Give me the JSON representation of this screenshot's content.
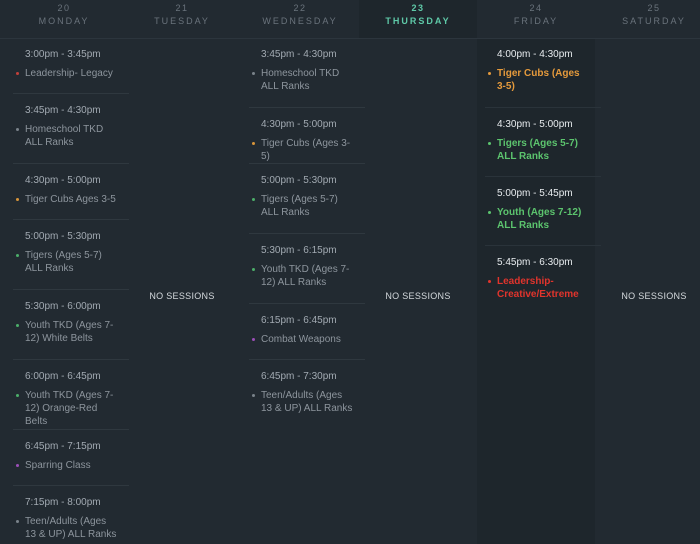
{
  "days": [
    {
      "num": "20",
      "name": "MONDAY",
      "active": false,
      "no_sessions": "",
      "sessions": [
        {
          "time": "3:00pm - 3:45pm",
          "title": "Leadership- Legacy",
          "color": "#c2403a"
        },
        {
          "time": "3:45pm - 4:30pm",
          "title": "Homeschool TKD ALL Ranks",
          "color": "#7a838b"
        },
        {
          "time": "4:30pm - 5:00pm",
          "title": "Tiger Cubs Ages 3-5",
          "color": "#d9963a"
        },
        {
          "time": "5:00pm - 5:30pm",
          "title": "Tigers (Ages 5-7) ALL Ranks",
          "color": "#4caf6a"
        },
        {
          "time": "5:30pm - 6:00pm",
          "title": "Youth TKD (Ages 7-12) White Belts",
          "color": "#4caf6a"
        },
        {
          "time": "6:00pm - 6:45pm",
          "title": "Youth TKD (Ages 7-12) Orange-Red Belts",
          "color": "#4caf6a"
        },
        {
          "time": "6:45pm - 7:15pm",
          "title": "Sparring Class",
          "color": "#9c4fb8"
        },
        {
          "time": "7:15pm - 8:00pm",
          "title": "Teen/Adults (Ages 13 & UP) ALL Ranks",
          "color": "#7a838b"
        }
      ]
    },
    {
      "num": "21",
      "name": "TUESDAY",
      "active": false,
      "no_sessions": "NO SESSIONS",
      "sessions": []
    },
    {
      "num": "22",
      "name": "WEDNESDAY",
      "active": false,
      "no_sessions": "",
      "sessions": [
        {
          "time": "3:45pm - 4:30pm",
          "title": "Homeschool TKD ALL Ranks",
          "color": "#7a838b"
        },
        {
          "time": "4:30pm - 5:00pm",
          "title": "Tiger Cubs (Ages 3-5)",
          "color": "#d9963a"
        },
        {
          "time": "5:00pm - 5:30pm",
          "title": "Tigers (Ages 5-7) ALL Ranks",
          "color": "#4caf6a"
        },
        {
          "time": "5:30pm - 6:15pm",
          "title": "Youth TKD (Ages 7-12) ALL Ranks",
          "color": "#4caf6a"
        },
        {
          "time": "6:15pm - 6:45pm",
          "title": "Combat Weapons",
          "color": "#9c4fb8"
        },
        {
          "time": "6:45pm - 7:30pm",
          "title": "Teen/Adults (Ages 13 & UP) ALL Ranks",
          "color": "#7a838b"
        }
      ]
    },
    {
      "num": "23",
      "name": "THURSDAY",
      "active": false,
      "no_sessions": "NO SESSIONS",
      "sessions": []
    },
    {
      "num": "24",
      "name": "FRIDAY",
      "active": true,
      "no_sessions": "",
      "sessions": [
        {
          "time": "4:00pm - 4:30pm",
          "title": "Tiger Cubs (Ages 3-5)",
          "color": "#e59a3c"
        },
        {
          "time": "4:30pm - 5:00pm",
          "title": "Tigers (Ages 5-7) ALL Ranks",
          "color": "#5cc46e"
        },
        {
          "time": "5:00pm - 5:45pm",
          "title": "Youth (Ages 7-12) ALL Ranks",
          "color": "#5cc46e"
        },
        {
          "time": "5:45pm - 6:30pm",
          "title": "Leadership- Creative/Extreme",
          "color": "#e0342c"
        }
      ]
    },
    {
      "num": "25",
      "name": "SATURDAY",
      "active": false,
      "no_sessions": "NO SESSIONS",
      "sessions": []
    }
  ],
  "highlight_day": "23",
  "accent_color": "#5fc9a8"
}
